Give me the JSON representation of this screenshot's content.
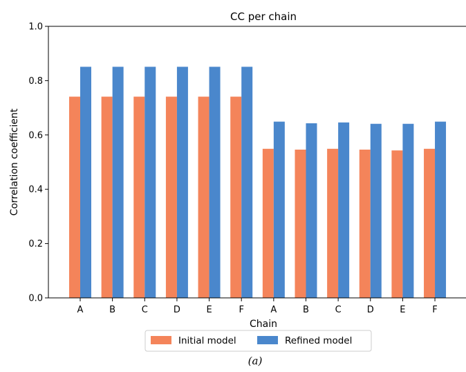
{
  "chart_data": {
    "type": "bar",
    "title": "CC per chain",
    "xlabel": "Chain",
    "ylabel": "Correlation coefficient",
    "ylim": [
      0.0,
      1.0
    ],
    "yticks": [
      "0.0",
      "0.2",
      "0.4",
      "0.6",
      "0.8",
      "1.0"
    ],
    "categories": [
      "A",
      "B",
      "C",
      "D",
      "E",
      "F",
      "A",
      "B",
      "C",
      "D",
      "E",
      "F"
    ],
    "series": [
      {
        "name": "Initial model",
        "color": "#f4845a",
        "values": [
          0.741,
          0.741,
          0.741,
          0.741,
          0.741,
          0.741,
          0.549,
          0.546,
          0.549,
          0.546,
          0.543,
          0.549
        ]
      },
      {
        "name": "Refined model",
        "color": "#4a87cc",
        "values": [
          0.851,
          0.851,
          0.851,
          0.851,
          0.851,
          0.851,
          0.649,
          0.643,
          0.646,
          0.641,
          0.641,
          0.649
        ]
      }
    ],
    "grid": false,
    "legend_position": "bottom-center"
  },
  "caption": "(a)"
}
